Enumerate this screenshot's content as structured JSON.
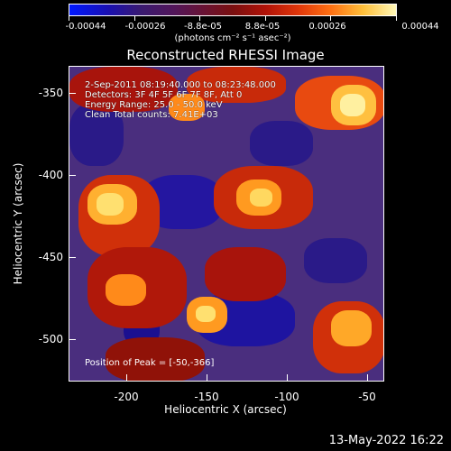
{
  "colorbar": {
    "ticks": [
      "-0.00044",
      "-0.00026",
      "-8.8e-05",
      "8.8e-05",
      "0.00026",
      "0.00044"
    ],
    "units": "(photons cm⁻² s⁻¹ asec⁻²)"
  },
  "title": "Reconstructed RHESSI Image",
  "info_lines": [
    "2-Sep-2011 08:19:40.000 to 08:23:48.000",
    "Detectors: 3F 4F 5F 6F 7F 8F, Att 0",
    "Energy Range: 25.0 - 50.0 keV",
    "Clean    Total counts: 7.41E+03"
  ],
  "peak_text": "Position of Peak = [-50,-366]",
  "y_axis": {
    "title": "Heliocentric Y (arcsec)",
    "ticks": [
      "-350",
      "-400",
      "-450",
      "-500"
    ]
  },
  "x_axis": {
    "title": "Heliocentric X (arcsec)",
    "ticks": [
      "-200",
      "-150",
      "-100",
      "-50"
    ]
  },
  "footer_date": "13-May-2022 16:22",
  "colors": {
    "background": "#000000",
    "hot": "#ffdd44",
    "cold": "#1b1090",
    "mid": "#4a2e7e"
  }
}
